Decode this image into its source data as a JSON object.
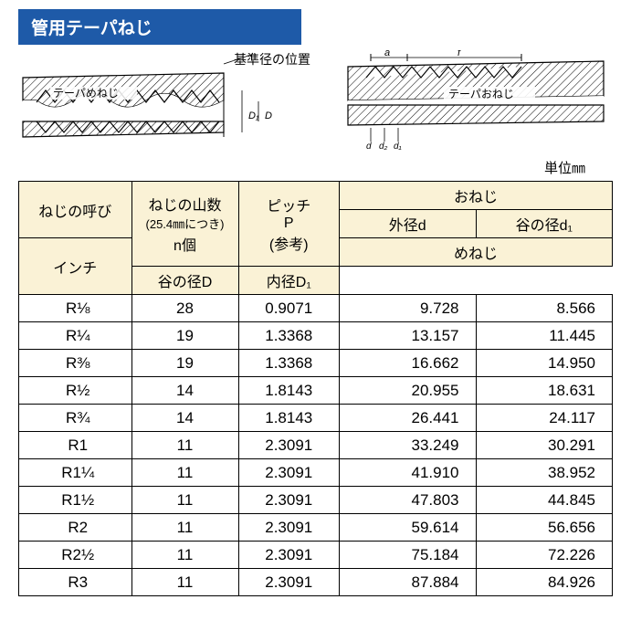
{
  "title": "管用テーパねじ",
  "diagram_left": {
    "ref_label": "基準径の位置",
    "thread_label": "テーパめねじ",
    "dims": [
      "D₁",
      "D"
    ]
  },
  "diagram_right": {
    "top_dims": [
      "a",
      "f"
    ],
    "thread_label": "テーパおねじ",
    "bottom_dims": [
      "d",
      "d₂",
      "d₁"
    ]
  },
  "unit_label": "単位㎜",
  "headers": {
    "nominal": "ねじの呼び",
    "nominal_sub": "インチ",
    "threads": "ねじの山数",
    "threads_sub1": "(25.4㎜につき)",
    "threads_sub2": "n個",
    "pitch": "ピッチ",
    "pitch_sub1": "P",
    "pitch_sub2": "(参考)",
    "male": "おねじ",
    "male_outer": "外径d",
    "male_root": "谷の径d₁",
    "female": "めねじ",
    "female_root": "谷の径D",
    "female_inner": "内径D₁"
  },
  "rows": [
    {
      "r": "R⅛",
      "n": "28",
      "p": "0.9071",
      "d": "9.728",
      "d1": "8.566"
    },
    {
      "r": "R¼",
      "n": "19",
      "p": "1.3368",
      "d": "13.157",
      "d1": "11.445"
    },
    {
      "r": "R⅜",
      "n": "19",
      "p": "1.3368",
      "d": "16.662",
      "d1": "14.950"
    },
    {
      "r": "R½",
      "n": "14",
      "p": "1.8143",
      "d": "20.955",
      "d1": "18.631"
    },
    {
      "r": "R¾",
      "n": "14",
      "p": "1.8143",
      "d": "26.441",
      "d1": "24.117"
    },
    {
      "r": "R1",
      "n": "11",
      "p": "2.3091",
      "d": "33.249",
      "d1": "30.291"
    },
    {
      "r": "R1¼",
      "n": "11",
      "p": "2.3091",
      "d": "41.910",
      "d1": "38.952"
    },
    {
      "r": "R1½",
      "n": "11",
      "p": "2.3091",
      "d": "47.803",
      "d1": "44.845"
    },
    {
      "r": "R2",
      "n": "11",
      "p": "2.3091",
      "d": "59.614",
      "d1": "56.656"
    },
    {
      "r": "R2½",
      "n": "11",
      "p": "2.3091",
      "d": "75.184",
      "d1": "72.226"
    },
    {
      "r": "R3",
      "n": "11",
      "p": "2.3091",
      "d": "87.884",
      "d1": "84.926"
    }
  ],
  "style": {
    "title_bg": "#1e5aa8",
    "title_fg": "#ffffff",
    "header_bg": "#faf2d6",
    "border": "#000000",
    "bg": "#ffffff"
  }
}
